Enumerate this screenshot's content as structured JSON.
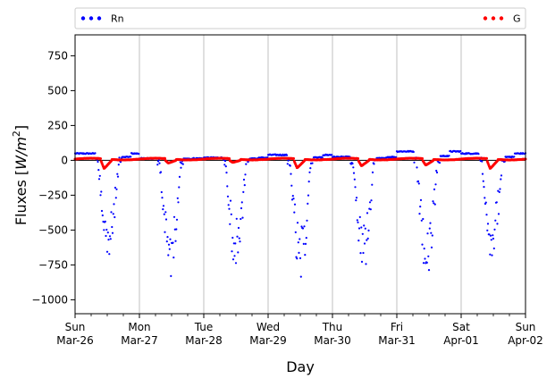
{
  "chart_data": {
    "type": "scatter",
    "xlabel": "Day",
    "ylabel_prefix": "Fluxes [",
    "ylabel_unit": "W/m",
    "ylabel_exp": "2",
    "ylabel_suffix": "]",
    "ylim": [
      -1100,
      900
    ],
    "yticks": [
      -1000,
      -750,
      -500,
      -250,
      0,
      250,
      500,
      750
    ],
    "x_range_days": [
      0,
      7
    ],
    "xticks": [
      {
        "day": 0,
        "line1": "Sun",
        "line2": "Mar-26"
      },
      {
        "day": 1,
        "line1": "Mon",
        "line2": "Mar-27"
      },
      {
        "day": 2,
        "line1": "Tue",
        "line2": "Mar-28"
      },
      {
        "day": 3,
        "line1": "Wed",
        "line2": "Mar-29"
      },
      {
        "day": 4,
        "line1": "Thu",
        "line2": "Mar-30"
      },
      {
        "day": 5,
        "line1": "Fri",
        "line2": "Mar-31"
      },
      {
        "day": 6,
        "line1": "Sat",
        "line2": "Apr-01"
      },
      {
        "day": 7,
        "line1": "Sun",
        "line2": "Apr-02"
      }
    ],
    "grid": "vertical",
    "legend_placement": "top, above plot",
    "zero_line": true,
    "series": [
      {
        "name": "Rn",
        "color": "#0000ff",
        "daily_pattern": [
          {
            "trough_center": 0.52,
            "min": -740,
            "night_level": 55
          },
          {
            "trough_center": 1.48,
            "min": -870,
            "night_level": 20
          },
          {
            "trough_center": 2.5,
            "min": -800,
            "night_level": 25
          },
          {
            "trough_center": 3.5,
            "min": -930,
            "night_level": 45
          },
          {
            "trough_center": 4.48,
            "min": -800,
            "night_level": 30
          },
          {
            "trough_center": 5.47,
            "min": -890,
            "night_level": 70
          },
          {
            "trough_center": 6.48,
            "min": -700,
            "night_level": 55
          }
        ]
      },
      {
        "name": "G",
        "color": "#ff0000",
        "daily_pattern": [
          {
            "trough_center": 0.45,
            "min": -60
          },
          {
            "trough_center": 1.45,
            "min": -20
          },
          {
            "trough_center": 2.45,
            "min": -15
          },
          {
            "trough_center": 3.45,
            "min": -55
          },
          {
            "trough_center": 4.45,
            "min": -40
          },
          {
            "trough_center": 5.45,
            "min": -35
          },
          {
            "trough_center": 6.45,
            "min": -60
          }
        ]
      }
    ]
  }
}
